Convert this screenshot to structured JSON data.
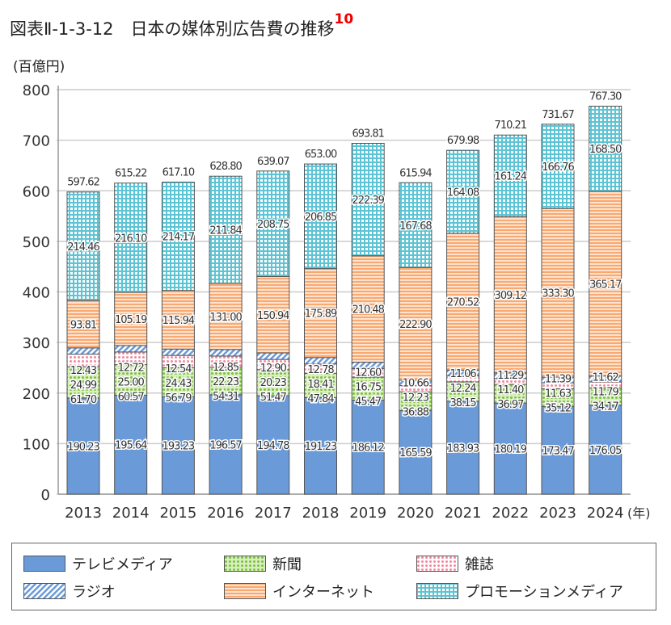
{
  "title": "図表Ⅱ-1-3-12　日本の媒体別広告費の推移",
  "footnote_ref": "10",
  "chart_data": {
    "type": "bar",
    "stacked": true,
    "ylabel": "(百億円)",
    "xlabel_unit": "(年)",
    "ylim": [
      0,
      800
    ],
    "yticks": [
      0,
      100,
      200,
      300,
      400,
      500,
      600,
      700,
      800
    ],
    "grid": true,
    "legend_placement": "bottom",
    "categories": [
      "2013",
      "2014",
      "2015",
      "2016",
      "2017",
      "2018",
      "2019",
      "2020",
      "2021",
      "2022",
      "2023",
      "2024"
    ],
    "totals": [
      "597.62",
      "615.22",
      "617.10",
      "628.80",
      "639.07",
      "653.00",
      "693.81",
      "615.94",
      "679.98",
      "710.21",
      "731.67",
      "767.30"
    ],
    "series": [
      {
        "name": "テレビメディア",
        "color": "#6a9bd8",
        "pattern": "solid",
        "values": [
          190.23,
          195.64,
          193.23,
          196.57,
          194.78,
          191.23,
          186.12,
          165.59,
          183.93,
          180.19,
          173.47,
          176.05
        ]
      },
      {
        "name": "新聞",
        "color": "#9fd466",
        "pattern": "dots",
        "values": [
          61.7,
          60.57,
          56.79,
          54.31,
          51.47,
          47.84,
          45.47,
          36.88,
          38.15,
          36.97,
          35.12,
          34.17
        ]
      },
      {
        "name": "雑誌",
        "color": "#f7a8b8",
        "pattern": "dots",
        "values": [
          24.99,
          25.0,
          24.43,
          22.23,
          20.23,
          18.41,
          16.75,
          12.23,
          12.24,
          11.4,
          11.63,
          11.79
        ]
      },
      {
        "name": "ラジオ",
        "color": "#8fb5e8",
        "pattern": "diagonal",
        "values": [
          12.43,
          12.72,
          12.54,
          12.85,
          12.9,
          12.78,
          12.6,
          10.66,
          11.06,
          11.29,
          11.39,
          11.62
        ]
      },
      {
        "name": "インターネット",
        "color": "#f9b98a",
        "pattern": "horizontal",
        "values": [
          93.81,
          105.19,
          115.94,
          131.0,
          150.94,
          175.89,
          210.48,
          222.9,
          270.52,
          309.12,
          333.3,
          365.17
        ]
      },
      {
        "name": "プロモーションメディア",
        "color": "#3ab6c8",
        "pattern": "check",
        "values": [
          214.46,
          216.1,
          214.17,
          211.84,
          208.75,
          206.85,
          222.39,
          167.68,
          164.08,
          161.24,
          166.76,
          168.5
        ]
      }
    ]
  }
}
